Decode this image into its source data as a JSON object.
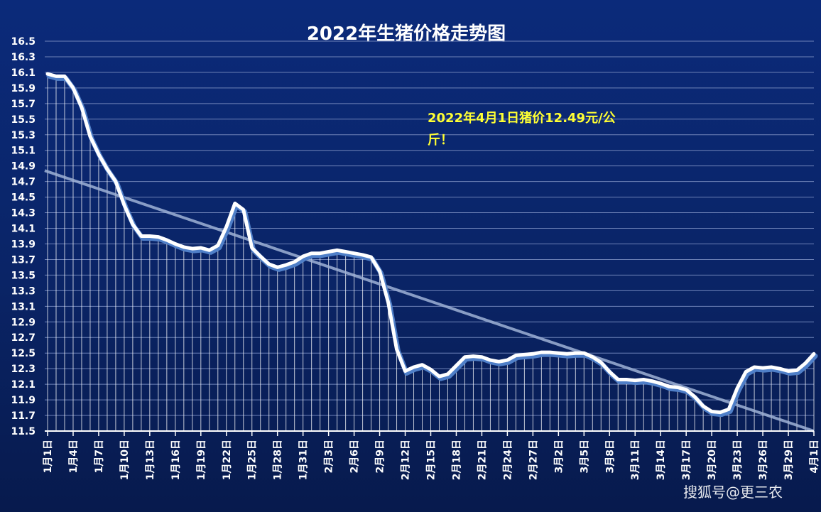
{
  "chart_data": {
    "type": "line",
    "title": "2022年生猪价格走势图",
    "annotation_line1": "2022年4月1日猪价12.49元/公",
    "annotation_line2": "斤！",
    "watermark": "搜狐号@更三农",
    "ylim": [
      11.5,
      16.5
    ],
    "y_ticks": [
      "11.5",
      "11.7",
      "11.9",
      "12.1",
      "12.3",
      "12.5",
      "12.7",
      "12.9",
      "13.1",
      "13.3",
      "13.5",
      "13.7",
      "13.9",
      "14.1",
      "14.3",
      "14.5",
      "14.7",
      "14.9",
      "15.1",
      "15.3",
      "15.5",
      "15.7",
      "15.9",
      "16.1",
      "16.3",
      "16.5"
    ],
    "x_tick_labels": [
      "1月1日",
      "1月4日",
      "1月7日",
      "1月10日",
      "1月13日",
      "1月16日",
      "1月19日",
      "1月22日",
      "1月25日",
      "1月28日",
      "1月31日",
      "2月3日",
      "2月6日",
      "2月9日",
      "2月12日",
      "2月15日",
      "2月18日",
      "2月21日",
      "2月24日",
      "2月27日",
      "3月2日",
      "3月5日",
      "3月8日",
      "3月11日",
      "3月14日",
      "3月17日",
      "3月20日",
      "3月23日",
      "3月26日",
      "3月29日",
      "4月1日"
    ],
    "values": [
      16.08,
      16.05,
      16.05,
      15.9,
      15.65,
      15.28,
      15.05,
      14.86,
      14.7,
      14.4,
      14.15,
      14.0,
      14.0,
      13.99,
      13.95,
      13.9,
      13.86,
      13.84,
      13.85,
      13.82,
      13.88,
      14.12,
      14.42,
      14.34,
      13.85,
      13.74,
      13.64,
      13.6,
      13.63,
      13.67,
      13.74,
      13.78,
      13.78,
      13.8,
      13.82,
      13.8,
      13.78,
      13.76,
      13.73,
      13.55,
      13.15,
      12.55,
      12.27,
      12.32,
      12.35,
      12.29,
      12.2,
      12.23,
      12.34,
      12.45,
      12.46,
      12.45,
      12.41,
      12.39,
      12.41,
      12.47,
      12.48,
      12.49,
      12.51,
      12.51,
      12.5,
      12.49,
      12.5,
      12.5,
      12.45,
      12.38,
      12.26,
      12.16,
      12.16,
      12.15,
      12.16,
      12.14,
      12.11,
      12.07,
      12.06,
      12.03,
      11.94,
      11.82,
      11.75,
      11.74,
      11.78,
      12.05,
      12.26,
      12.32,
      12.31,
      12.32,
      12.3,
      12.27,
      12.28,
      12.37,
      12.49
    ],
    "trend": [
      14.84,
      11.5
    ],
    "colors": {
      "line": "#ffffff",
      "shadow": "#4f7fc8",
      "trend": "#9fb2d6",
      "drop": "#ffffff",
      "grid": "#6f83b8",
      "annotation": "#ffff33"
    }
  }
}
